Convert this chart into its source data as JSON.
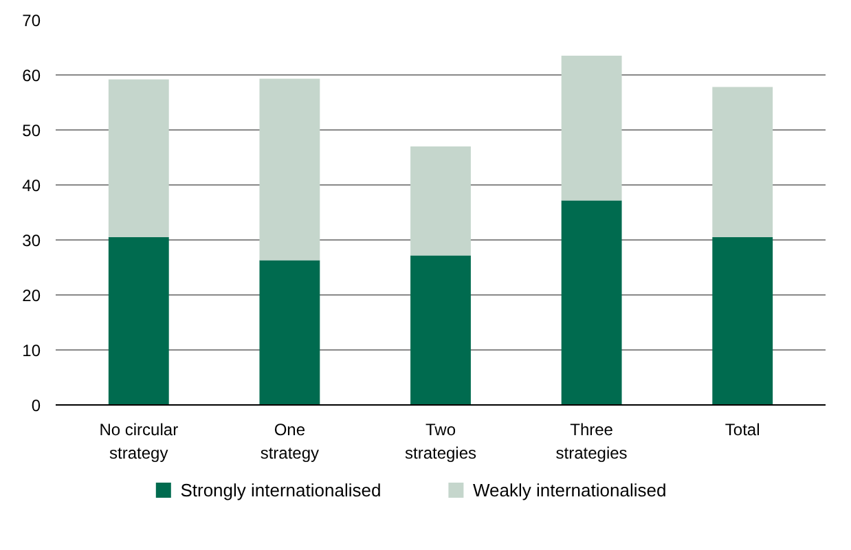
{
  "chart_data": {
    "type": "bar",
    "stacked": true,
    "categories": [
      "No circular\nstrategy",
      "One\nstrategy",
      "Two\nstrategies",
      "Three\nstrategies",
      "Total"
    ],
    "series": [
      {
        "name": "Strongly internationalised",
        "color": "#006b4f",
        "values": [
          30.5,
          26.3,
          27.2,
          37.2,
          30.5
        ]
      },
      {
        "name": "Weakly internationalised",
        "color": "#c5d6cc",
        "values": [
          28.7,
          33.0,
          19.8,
          26.3,
          27.3
        ]
      }
    ],
    "ylim": [
      0,
      70
    ],
    "yticks": [
      0,
      10,
      20,
      30,
      40,
      50,
      60,
      70
    ],
    "grid": "y",
    "legend": "bottom"
  }
}
